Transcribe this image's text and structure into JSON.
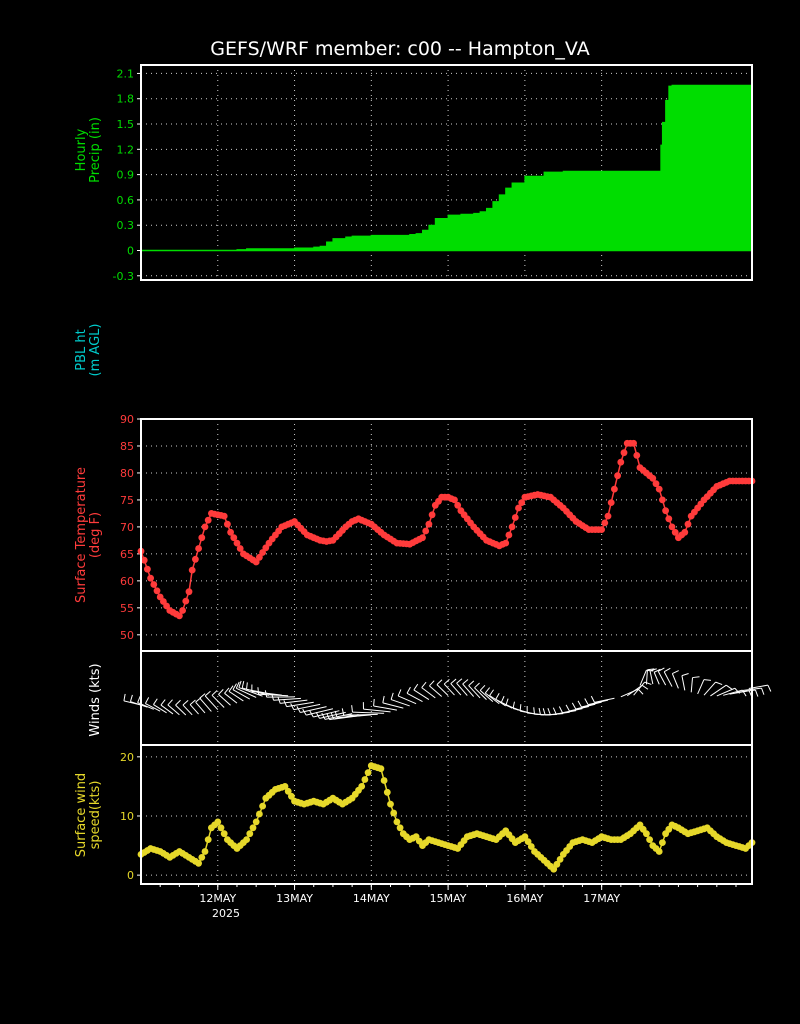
{
  "title": "GEFS/WRF member: c00 -- Hampton_VA",
  "time_axis": {
    "labels": [
      "12MAY",
      "13MAY",
      "14MAY",
      "15MAY",
      "16MAY",
      "17MAY"
    ],
    "year_label": "2025",
    "range": [
      "2025-05-11T00:00",
      "2025-05-17T23:00"
    ]
  },
  "colors": {
    "precip": "#00dd00",
    "pbl": "#00cccc",
    "temperature": "#ff3b3b",
    "winds": "#ffffff",
    "wind_speed": "#e6d82a",
    "frame": "#ffffff",
    "grid": "#ffffff"
  },
  "chart_data": [
    {
      "id": "precip",
      "type": "area",
      "ylabel_lines": [
        "Hourly",
        "Precip (in)"
      ],
      "ylim": [
        -0.35,
        2.2
      ],
      "yticks": [
        "-0.3",
        "0",
        "0.3",
        "0.6",
        "0.9",
        "1.2",
        "1.5",
        "1.8",
        "2.1"
      ],
      "grid": true,
      "x": [
        0,
        6,
        12,
        18,
        24,
        30,
        33,
        36,
        42,
        48,
        54,
        56,
        58,
        60,
        64,
        66,
        72,
        78,
        84,
        86,
        88,
        90,
        92,
        96,
        100,
        102,
        104,
        106,
        108,
        110,
        112,
        114,
        116,
        120,
        126,
        132,
        134,
        136,
        138,
        140,
        141,
        142,
        143,
        144,
        150,
        156,
        160,
        162,
        162.5,
        163,
        164,
        165,
        166,
        168,
        174,
        180,
        186,
        191
      ],
      "values": [
        0.0,
        0.0,
        0.0,
        0.0,
        0.0,
        0.01,
        0.02,
        0.02,
        0.02,
        0.03,
        0.04,
        0.05,
        0.1,
        0.14,
        0.16,
        0.17,
        0.18,
        0.18,
        0.19,
        0.2,
        0.24,
        0.3,
        0.38,
        0.42,
        0.43,
        0.43,
        0.44,
        0.46,
        0.5,
        0.58,
        0.66,
        0.74,
        0.8,
        0.88,
        0.93,
        0.94,
        0.94,
        0.94,
        0.94,
        0.94,
        0.94,
        0.94,
        0.94,
        0.94,
        0.94,
        0.94,
        0.94,
        0.94,
        1.25,
        1.52,
        1.78,
        1.95,
        1.96,
        1.96,
        1.96,
        1.96,
        1.96,
        1.96
      ]
    },
    {
      "id": "pbl",
      "type": "line",
      "ylabel_lines": [
        "PBL ht",
        "(m AGL)"
      ],
      "x": [],
      "values": []
    },
    {
      "id": "temperature",
      "type": "line",
      "ylabel_lines": [
        "Surface Temperature",
        "(deg F)"
      ],
      "ylim": [
        47,
        90
      ],
      "yticks": [
        "50",
        "55",
        "60",
        "65",
        "70",
        "75",
        "80",
        "85",
        "90"
      ],
      "grid": true,
      "x": [
        0,
        3,
        6,
        9,
        12,
        13,
        15,
        16,
        18,
        20,
        22,
        26,
        28,
        32,
        36,
        40,
        44,
        48,
        52,
        56,
        58,
        60,
        64,
        66,
        68,
        72,
        76,
        80,
        84,
        88,
        90,
        92,
        94,
        96,
        98,
        100,
        104,
        108,
        112,
        114,
        116,
        118,
        120,
        124,
        128,
        132,
        136,
        140,
        144,
        146,
        148,
        150,
        152,
        154,
        156,
        160,
        162,
        164,
        166,
        168,
        170,
        172,
        176,
        180,
        184,
        188,
        191
      ],
      "values": [
        65.5,
        60.5,
        57.0,
        54.5,
        53.5,
        54.5,
        58.0,
        62.0,
        66.0,
        70.0,
        72.5,
        72.0,
        69.0,
        65.0,
        63.5,
        67.0,
        70.0,
        71.0,
        68.5,
        67.5,
        67.3,
        67.5,
        70.0,
        71.0,
        71.5,
        70.5,
        68.5,
        67.0,
        66.8,
        68.0,
        70.5,
        74.0,
        75.5,
        75.5,
        75.0,
        73.0,
        70.0,
        67.5,
        66.5,
        67.0,
        70.0,
        73.5,
        75.5,
        76.0,
        75.5,
        73.5,
        71.0,
        69.5,
        69.5,
        72.0,
        77.0,
        82.0,
        85.5,
        85.5,
        81.0,
        79.0,
        77.0,
        73.0,
        70.0,
        68.0,
        69.0,
        72.0,
        75.0,
        77.5,
        78.5,
        78.5,
        78.5
      ]
    },
    {
      "id": "winds",
      "type": "line",
      "ylabel_lines": [
        "Winds (kts)"
      ],
      "x": [],
      "values": []
    },
    {
      "id": "wind_speed",
      "type": "line",
      "ylabel_lines": [
        "Surface wind",
        "speed(kts)"
      ],
      "ylim": [
        -1.5,
        22
      ],
      "yticks": [
        "0",
        "10",
        "20"
      ],
      "grid": true,
      "x": [
        0,
        3,
        6,
        9,
        12,
        15,
        18,
        20,
        22,
        24,
        27,
        30,
        33,
        36,
        39,
        42,
        45,
        48,
        51,
        54,
        57,
        60,
        63,
        66,
        69,
        72,
        75,
        76,
        78,
        80,
        82,
        84,
        86,
        88,
        90,
        93,
        96,
        99,
        102,
        105,
        108,
        111,
        114,
        117,
        120,
        123,
        126,
        129,
        132,
        135,
        138,
        141,
        144,
        147,
        150,
        153,
        156,
        158,
        160,
        162,
        164,
        166,
        168,
        171,
        174,
        177,
        180,
        183,
        186,
        189,
        191
      ],
      "values": [
        3.5,
        4.5,
        4.0,
        3.0,
        4.0,
        3.0,
        2.0,
        4.0,
        8.0,
        9.0,
        6.0,
        4.5,
        6.0,
        9.0,
        13.0,
        14.5,
        15.0,
        12.5,
        12.0,
        12.5,
        12.0,
        13.0,
        12.0,
        13.0,
        15.0,
        18.5,
        18.0,
        16.0,
        12.0,
        9.0,
        7.0,
        6.0,
        6.5,
        5.0,
        6.0,
        5.5,
        5.0,
        4.5,
        6.5,
        7.0,
        6.5,
        6.0,
        7.5,
        5.5,
        6.5,
        4.0,
        2.5,
        1.0,
        3.5,
        5.5,
        6.0,
        5.5,
        6.5,
        6.0,
        6.0,
        7.0,
        8.5,
        7.0,
        5.0,
        4.0,
        7.0,
        8.5,
        8.0,
        7.0,
        7.5,
        8.0,
        6.5,
        5.5,
        5.0,
        4.5,
        5.5
      ]
    }
  ]
}
